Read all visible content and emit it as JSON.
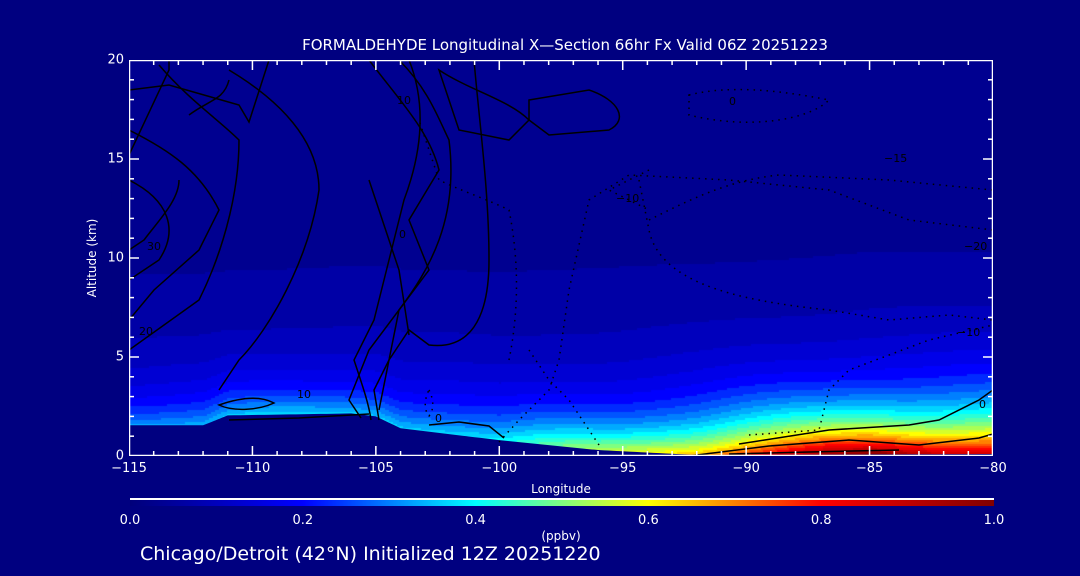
{
  "chart_data": {
    "type": "heatmap",
    "title": "FORMALDEHYDE Longitudinal X—Section 66hr  Fx Valid 06Z 20251223",
    "xlabel": "Longitude",
    "ylabel": "Altitude (km)",
    "xlim": [
      -115,
      -80
    ],
    "ylim": [
      0,
      20
    ],
    "x_ticks": [
      "−115",
      "−110",
      "−105",
      "−100",
      "−95",
      "−90",
      "−85",
      "−80"
    ],
    "x_tick_values": [
      -115,
      -110,
      -105,
      -100,
      -95,
      -90,
      -85,
      -80
    ],
    "y_ticks": [
      "0",
      "5",
      "10",
      "15",
      "20"
    ],
    "y_tick_values": [
      0,
      5,
      10,
      15,
      20
    ],
    "colorbar": {
      "label": "(ppbv)",
      "range": [
        0.0,
        1.0
      ],
      "ticks": [
        "0.0",
        "0.2",
        "0.4",
        "0.6",
        "0.8",
        "1.0"
      ],
      "colors": [
        "#00007a",
        "#0000ff",
        "#00ffff",
        "#ffff00",
        "#ff0000",
        "#800000"
      ]
    },
    "surface_concentration_ppbv": {
      "lon": [
        -115,
        -110,
        -105,
        -100,
        -95,
        -90,
        -85,
        -80
      ],
      "values": [
        0.38,
        0.4,
        0.42,
        0.42,
        0.58,
        0.82,
        1.0,
        0.95
      ]
    },
    "terrain_km": {
      "lon": [
        -115,
        -112,
        -111,
        -106,
        -105,
        -104,
        -100,
        -96,
        -92,
        -80
      ],
      "values": [
        1.55,
        1.55,
        2.05,
        2.15,
        2.0,
        1.4,
        0.8,
        0.3,
        0.05,
        0.1
      ]
    },
    "contour_labels": [
      "10",
      "0",
      "30",
      "20",
      "10",
      "0",
      "0",
      "−10",
      "−15",
      "−20",
      "−10",
      "0"
    ]
  },
  "footer": "Chicago/Detroit (42°N) Initialized 12Z 20251220"
}
